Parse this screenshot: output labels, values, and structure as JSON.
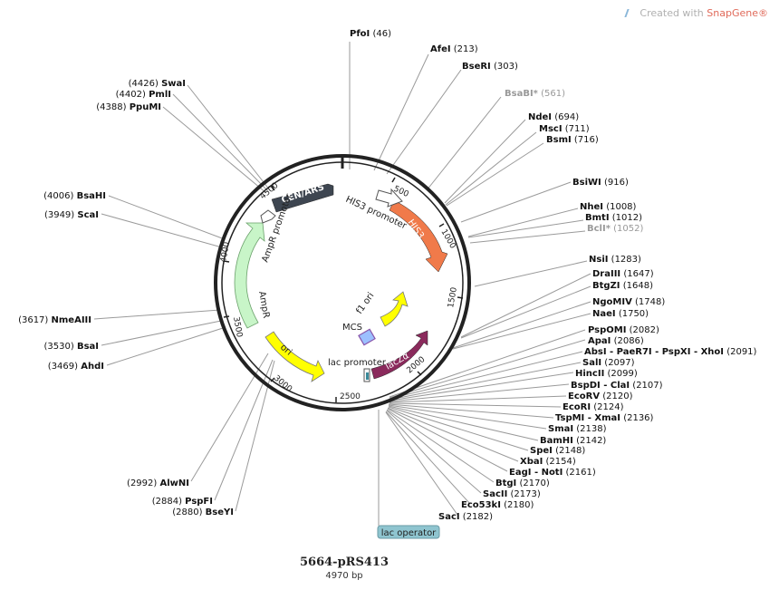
{
  "watermark": {
    "prefix": "Created with",
    "brand": "SnapGene®"
  },
  "plasmid": {
    "name": "5664-pRS413",
    "size_label": "4970 bp"
  },
  "sites": [
    {
      "name": "PfoI",
      "pos": "(46)"
    },
    {
      "name": "AfeI",
      "pos": "(213)"
    },
    {
      "name": "BseRI",
      "pos": "(303)"
    },
    {
      "name": "BsaBI*",
      "pos": "(561)",
      "dim": true
    },
    {
      "name": "NdeI",
      "pos": "(694)"
    },
    {
      "name": "MscI",
      "pos": "(711)"
    },
    {
      "name": "BsmI",
      "pos": "(716)"
    },
    {
      "name": "BsiWI",
      "pos": "(916)"
    },
    {
      "name": "NheI",
      "pos": "(1008)"
    },
    {
      "name": "BmtI",
      "pos": "(1012)"
    },
    {
      "name": "BclI*",
      "pos": "(1052)",
      "dim": true
    },
    {
      "name": "NsiI",
      "pos": "(1283)"
    },
    {
      "name": "DraIII",
      "pos": "(1647)"
    },
    {
      "name": "BtgZI",
      "pos": "(1648)"
    },
    {
      "name": "NgoMIV",
      "pos": "(1748)"
    },
    {
      "name": "NaeI",
      "pos": "(1750)"
    },
    {
      "name": "PspOMI",
      "pos": "(2082)"
    },
    {
      "name": "ApaI",
      "pos": "(2086)"
    },
    {
      "name": "AbsI - PaeR7I - PspXI - XhoI",
      "pos": "(2091)"
    },
    {
      "name": "SalI",
      "pos": "(2097)"
    },
    {
      "name": "HincII",
      "pos": "(2099)"
    },
    {
      "name": "BspDI - ClaI",
      "pos": "(2107)"
    },
    {
      "name": "EcoRV",
      "pos": "(2120)"
    },
    {
      "name": "EcoRI",
      "pos": "(2124)"
    },
    {
      "name": "TspMI - XmaI",
      "pos": "(2136)"
    },
    {
      "name": "SmaI",
      "pos": "(2138)"
    },
    {
      "name": "BamHI",
      "pos": "(2142)"
    },
    {
      "name": "SpeI",
      "pos": "(2148)"
    },
    {
      "name": "XbaI",
      "pos": "(2154)"
    },
    {
      "name": "EagI - NotI",
      "pos": "(2161)"
    },
    {
      "name": "BtgI",
      "pos": "(2170)"
    },
    {
      "name": "SacII",
      "pos": "(2173)"
    },
    {
      "name": "Eco53kI",
      "pos": "(2180)"
    },
    {
      "name": "SacI",
      "pos": "(2182)"
    },
    {
      "name": "AlwNI",
      "pos": "(2992)"
    },
    {
      "name": "PspFI",
      "pos": "(2884)"
    },
    {
      "name": "BseYI",
      "pos": "(2880)"
    },
    {
      "name": "AhdI",
      "pos": "(3469)"
    },
    {
      "name": "BsaI",
      "pos": "(3530)"
    },
    {
      "name": "NmeAIII",
      "pos": "(3617)"
    },
    {
      "name": "ScaI",
      "pos": "(3949)"
    },
    {
      "name": "BsaHI",
      "pos": "(4006)"
    },
    {
      "name": "PpuMI",
      "pos": "(4388)"
    },
    {
      "name": "PmlI",
      "pos": "(4402)"
    },
    {
      "name": "SwaI",
      "pos": "(4426)"
    }
  ],
  "ticks": [
    "500",
    "1000",
    "1500",
    "2000",
    "2500",
    "3000",
    "3500",
    "4000",
    "4500"
  ],
  "features": [
    {
      "name": "CEN/ARS",
      "color": "#3e4651"
    },
    {
      "name": "HIS3",
      "color": "#f07a4a"
    },
    {
      "name": "AmpR",
      "color": "#c8f5c8"
    },
    {
      "name": "ori",
      "color": "#ffff00"
    },
    {
      "name": "f1 ori",
      "color": "#ffff00"
    },
    {
      "name": "lacZα",
      "color": "#8a2a5c"
    },
    {
      "name": "MCS",
      "color": "#9cc0ff"
    }
  ],
  "feature_labels": {
    "ampr_promoter": "AmpR promoter",
    "his3_promoter": "HIS3 promoter",
    "lac_promoter": "lac promoter",
    "ampr": "AmpR",
    "mcs": "MCS",
    "f1_ori": "f1 ori"
  },
  "lac_operator": "lac operator"
}
